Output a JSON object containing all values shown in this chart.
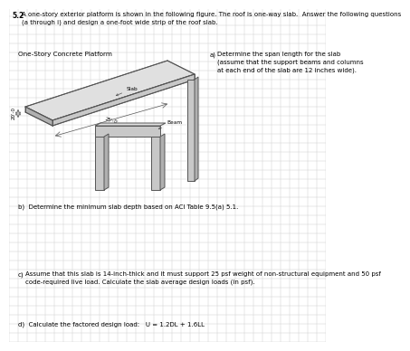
{
  "title_num": "5.2",
  "title_text": "A one-story exterior platform is shown in the following figure. The roof is one-way slab.  Answer the following questions\n(a through i) and design a one-foot wide strip of the roof slab.",
  "platform_label": "One-Story Concrete Platform",
  "dim1": "20ʹ-0",
  "dim2": "25ʹ-0",
  "slab_label": "Slab",
  "beam_label": "Beam",
  "qa_label": "a)",
  "qa_text": "Determine the span length for the slab\n(assume that the support beams and columns\nat each end of the slab are 12 inches wide).",
  "qb": "b)  Determine the minimum slab depth based on ACI Table 9.5(a) 5.1.",
  "qc_label": "c)",
  "qc_text": "Assume that this slab is 14-inch-thick and it must support 25 psf weight of non-structural equipment and 50 psf\ncode-required live load. Calculate the slab average design loads (in psf).",
  "qd": "d)  Calculate the factored design load:   U = 1.2DL + 1.6LL",
  "bg_color": "#ffffff",
  "grid_color": "#c8c8c8",
  "text_color": "#000000",
  "line_color": "#555555",
  "face_top": "#e0e0e0",
  "face_side": "#b0b0b0",
  "face_front": "#c8c8c8"
}
